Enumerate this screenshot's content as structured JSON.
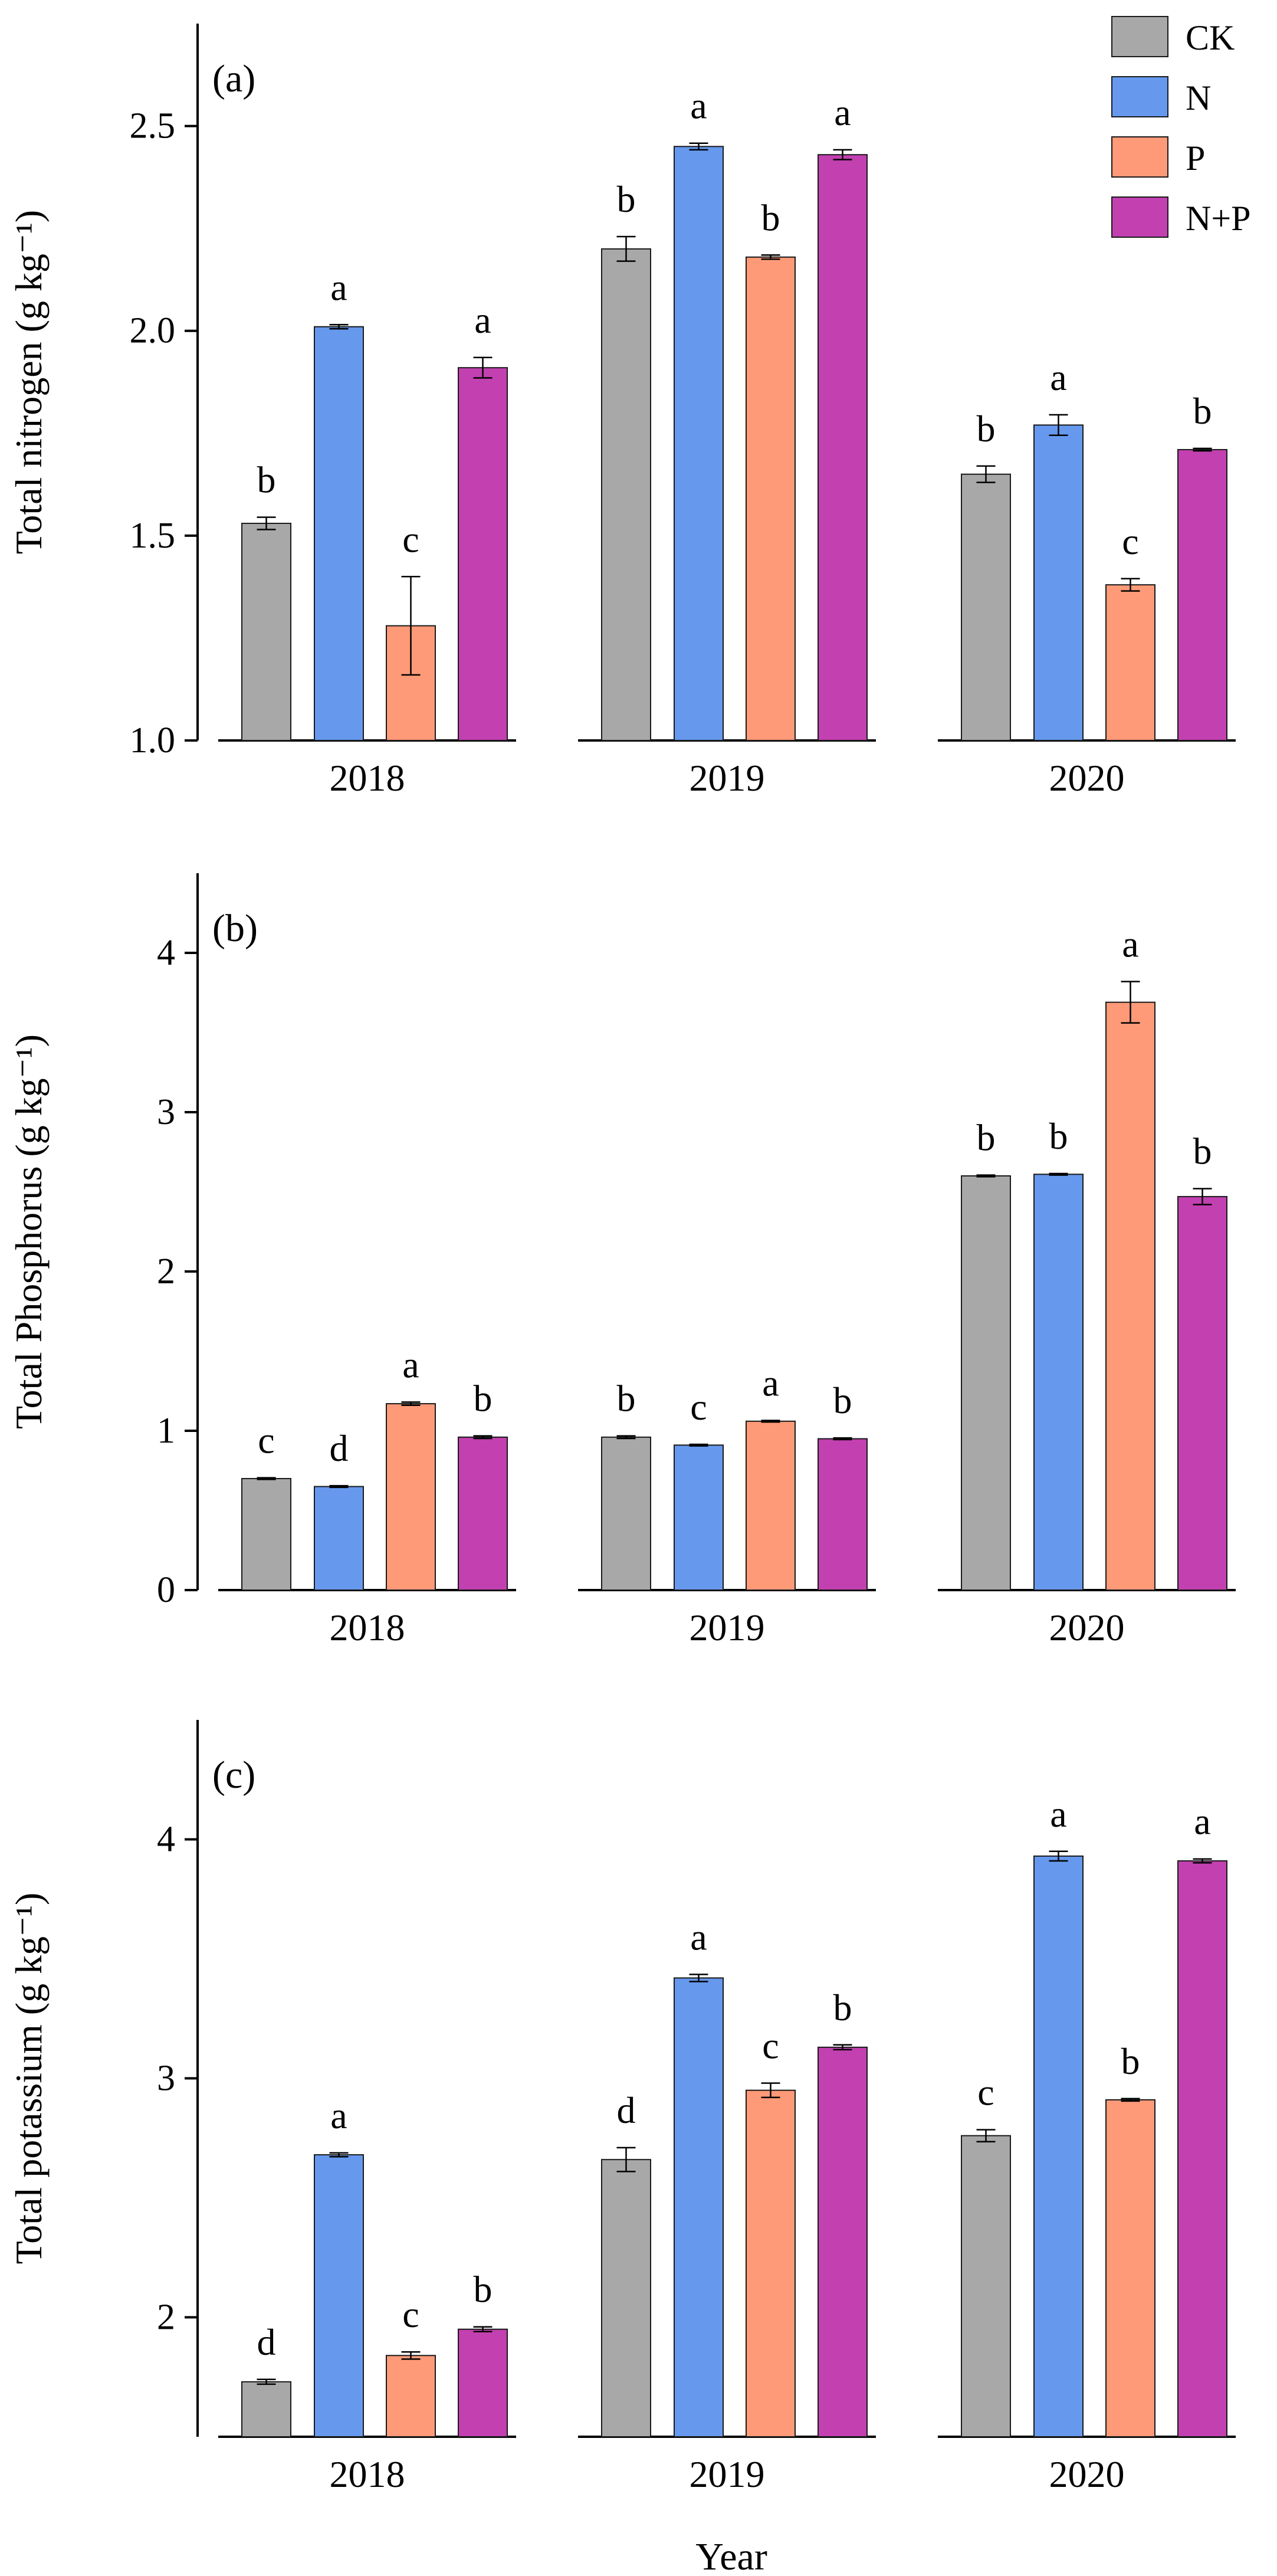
{
  "colors": {
    "CK": "#a8a8a8",
    "N": "#6699ee",
    "P": "#fe9a78",
    "N+P": "#c240b0",
    "axis": "#000000",
    "bar_edge": "#1a1a1a"
  },
  "legend": [
    "CK",
    "N",
    "P",
    "N+P"
  ],
  "x_title": "Year",
  "chart_data": [
    {
      "type": "bar",
      "panel_label": "(a)",
      "ylabel": "Total nitrogen (g kg⁻¹)",
      "ylim": [
        1.0,
        2.75
      ],
      "yticks": [
        1.0,
        1.5,
        2.0,
        2.5
      ],
      "ytick_labels": [
        "1.0",
        "1.5",
        "2.0",
        "2.5"
      ],
      "groups": [
        {
          "year": "2018",
          "bars": [
            {
              "treatment": "CK",
              "value": 1.53,
              "err": 0.015,
              "letter": "b"
            },
            {
              "treatment": "N",
              "value": 2.01,
              "err": 0.005,
              "letter": "a"
            },
            {
              "treatment": "P",
              "value": 1.28,
              "err": 0.12,
              "letter": "c"
            },
            {
              "treatment": "N+P",
              "value": 1.91,
              "err": 0.025,
              "letter": "a"
            }
          ]
        },
        {
          "year": "2019",
          "bars": [
            {
              "treatment": "CK",
              "value": 2.2,
              "err": 0.03,
              "letter": "b"
            },
            {
              "treatment": "N",
              "value": 2.45,
              "err": 0.008,
              "letter": "a"
            },
            {
              "treatment": "P",
              "value": 2.18,
              "err": 0.005,
              "letter": "b"
            },
            {
              "treatment": "N+P",
              "value": 2.43,
              "err": 0.012,
              "letter": "a"
            }
          ]
        },
        {
          "year": "2020",
          "bars": [
            {
              "treatment": "CK",
              "value": 1.65,
              "err": 0.02,
              "letter": "b"
            },
            {
              "treatment": "N",
              "value": 1.77,
              "err": 0.025,
              "letter": "a"
            },
            {
              "treatment": "P",
              "value": 1.38,
              "err": 0.015,
              "letter": "c"
            },
            {
              "treatment": "N+P",
              "value": 1.71,
              "err": 0.003,
              "letter": "b"
            }
          ]
        }
      ]
    },
    {
      "type": "bar",
      "panel_label": "(b)",
      "ylabel": "Total Phosphorus (g kg⁻¹)",
      "ylim": [
        0,
        4.5
      ],
      "yticks": [
        0,
        1,
        2,
        3,
        4
      ],
      "ytick_labels": [
        "0",
        "1",
        "2",
        "3",
        "4"
      ],
      "groups": [
        {
          "year": "2018",
          "bars": [
            {
              "treatment": "CK",
              "value": 0.7,
              "err": 0.005,
              "letter": "c"
            },
            {
              "treatment": "N",
              "value": 0.65,
              "err": 0.005,
              "letter": "d"
            },
            {
              "treatment": "P",
              "value": 1.17,
              "err": 0.01,
              "letter": "a"
            },
            {
              "treatment": "N+P",
              "value": 0.96,
              "err": 0.008,
              "letter": "b"
            }
          ]
        },
        {
          "year": "2019",
          "bars": [
            {
              "treatment": "CK",
              "value": 0.96,
              "err": 0.008,
              "letter": "b"
            },
            {
              "treatment": "N",
              "value": 0.91,
              "err": 0.005,
              "letter": "c"
            },
            {
              "treatment": "P",
              "value": 1.06,
              "err": 0.005,
              "letter": "a"
            },
            {
              "treatment": "N+P",
              "value": 0.95,
              "err": 0.005,
              "letter": "b"
            }
          ]
        },
        {
          "year": "2020",
          "bars": [
            {
              "treatment": "CK",
              "value": 2.6,
              "err": 0.005,
              "letter": "b"
            },
            {
              "treatment": "N",
              "value": 2.61,
              "err": 0.005,
              "letter": "b"
            },
            {
              "treatment": "P",
              "value": 3.69,
              "err": 0.13,
              "letter": "a"
            },
            {
              "treatment": "N+P",
              "value": 2.47,
              "err": 0.05,
              "letter": "b"
            }
          ]
        }
      ]
    },
    {
      "type": "bar",
      "panel_label": "(c)",
      "ylabel": "Total potassium (g kg⁻¹)",
      "ylim": [
        1.5,
        4.5
      ],
      "yticks": [
        2,
        3,
        4
      ],
      "ytick_labels": [
        "2",
        "3",
        "4"
      ],
      "groups": [
        {
          "year": "2018",
          "bars": [
            {
              "treatment": "CK",
              "value": 1.73,
              "err": 0.01,
              "letter": "d"
            },
            {
              "treatment": "N",
              "value": 2.68,
              "err": 0.008,
              "letter": "a"
            },
            {
              "treatment": "P",
              "value": 1.84,
              "err": 0.015,
              "letter": "c"
            },
            {
              "treatment": "N+P",
              "value": 1.95,
              "err": 0.01,
              "letter": "b"
            }
          ]
        },
        {
          "year": "2019",
          "bars": [
            {
              "treatment": "CK",
              "value": 2.66,
              "err": 0.05,
              "letter": "d"
            },
            {
              "treatment": "N",
              "value": 3.42,
              "err": 0.015,
              "letter": "a"
            },
            {
              "treatment": "P",
              "value": 2.95,
              "err": 0.03,
              "letter": "c"
            },
            {
              "treatment": "N+P",
              "value": 3.13,
              "err": 0.01,
              "letter": "b"
            }
          ]
        },
        {
          "year": "2020",
          "bars": [
            {
              "treatment": "CK",
              "value": 2.76,
              "err": 0.025,
              "letter": "c"
            },
            {
              "treatment": "N",
              "value": 3.93,
              "err": 0.02,
              "letter": "a"
            },
            {
              "treatment": "P",
              "value": 2.91,
              "err": 0.005,
              "letter": "b"
            },
            {
              "treatment": "N+P",
              "value": 3.91,
              "err": 0.008,
              "letter": "a"
            }
          ]
        }
      ]
    }
  ]
}
